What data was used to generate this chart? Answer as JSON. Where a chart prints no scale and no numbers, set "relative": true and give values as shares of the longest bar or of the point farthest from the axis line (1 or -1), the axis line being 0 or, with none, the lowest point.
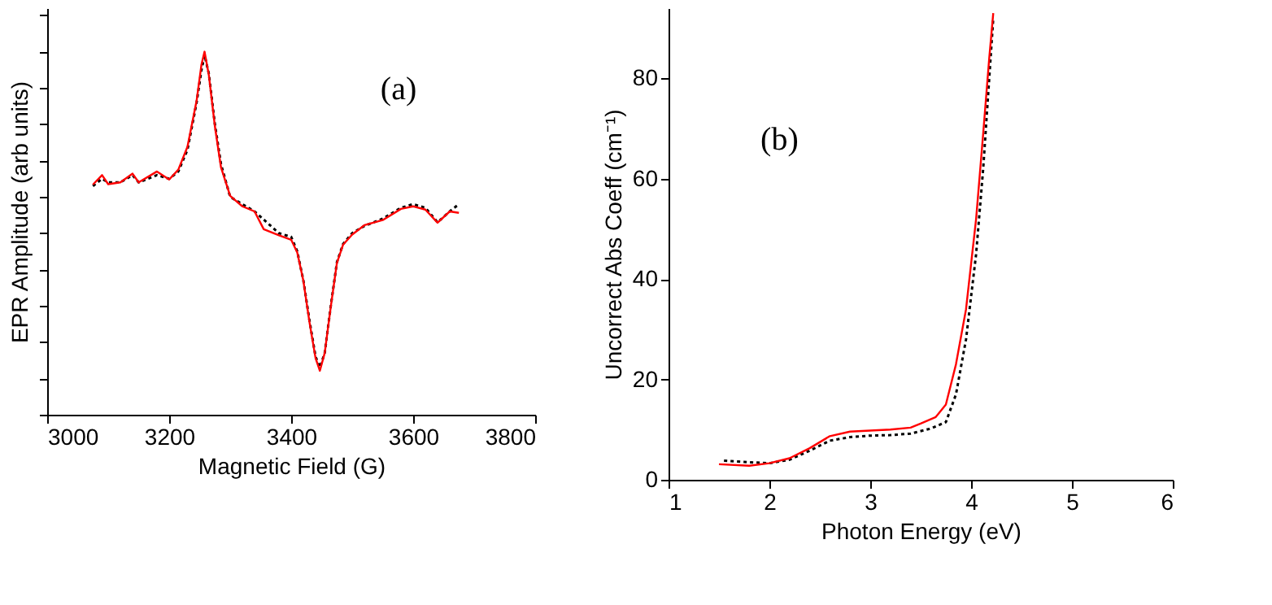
{
  "chart_data": [
    {
      "type": "line",
      "relative": true,
      "xlabel": "Magnetic Field (G)",
      "ylabel": "EPR Amplitude (arb units)",
      "annotations": [
        "(a)"
      ],
      "xlim": [
        3000,
        3800
      ],
      "xticks": [
        3000,
        3200,
        3400,
        3600,
        3800
      ],
      "tick_labels": "x",
      "grid": false,
      "legend": false,
      "series": [
        {
          "color": "#000000",
          "line_style": "dotted",
          "x": [
            3075,
            3090,
            3100,
            3120,
            3140,
            3150,
            3180,
            3200,
            3215,
            3230,
            3245,
            3253,
            3258,
            3265,
            3275,
            3285,
            3300,
            3320,
            3340,
            3360,
            3380,
            3400,
            3410,
            3420,
            3430,
            3440,
            3447,
            3455,
            3465,
            3475,
            3485,
            3500,
            3520,
            3550,
            3580,
            3600,
            3620,
            3640,
            3660,
            3675
          ],
          "values": [
            0.63,
            0.65,
            0.64,
            0.64,
            0.66,
            0.64,
            0.66,
            0.65,
            0.67,
            0.73,
            0.86,
            0.95,
            0.99,
            0.94,
            0.8,
            0.69,
            0.6,
            0.58,
            0.56,
            0.53,
            0.5,
            0.49,
            0.45,
            0.37,
            0.26,
            0.16,
            0.13,
            0.17,
            0.3,
            0.42,
            0.47,
            0.5,
            0.52,
            0.54,
            0.57,
            0.58,
            0.57,
            0.53,
            0.56,
            0.58
          ]
        },
        {
          "color": "#ff0000",
          "line_style": "solid",
          "x": [
            3075,
            3090,
            3100,
            3120,
            3140,
            3150,
            3180,
            3200,
            3215,
            3230,
            3245,
            3253,
            3258,
            3265,
            3275,
            3285,
            3300,
            3320,
            3340,
            3355,
            3380,
            3400,
            3410,
            3420,
            3430,
            3440,
            3447,
            3455,
            3465,
            3475,
            3485,
            3500,
            3520,
            3550,
            3580,
            3600,
            3620,
            3640,
            3660,
            3675
          ],
          "values": [
            0.634,
            0.66,
            0.635,
            0.64,
            0.664,
            0.64,
            0.67,
            0.648,
            0.675,
            0.738,
            0.865,
            0.965,
            1.0,
            0.936,
            0.794,
            0.681,
            0.603,
            0.574,
            0.56,
            0.511,
            0.494,
            0.482,
            0.447,
            0.369,
            0.255,
            0.156,
            0.121,
            0.17,
            0.298,
            0.418,
            0.468,
            0.496,
            0.522,
            0.536,
            0.567,
            0.574,
            0.565,
            0.529,
            0.56,
            0.556
          ]
        }
      ]
    },
    {
      "type": "line",
      "xlabel": "Photon Energy (eV)",
      "ylabel": "Uncorrect Abs Coeff (cm⁻¹)",
      "annotations": [
        "(b)"
      ],
      "xlim": [
        1,
        6
      ],
      "xticks": [
        1,
        2,
        3,
        4,
        5,
        6
      ],
      "ylim": [
        0,
        94
      ],
      "yticks": [
        0,
        20,
        40,
        60,
        80
      ],
      "grid": false,
      "legend": false,
      "series": [
        {
          "color": "#000000",
          "line_style": "dotted",
          "x": [
            1.55,
            1.8,
            2.0,
            2.2,
            2.4,
            2.6,
            2.8,
            3.0,
            3.2,
            3.4,
            3.6,
            3.75,
            3.85,
            3.95,
            4.05,
            4.12,
            4.18,
            4.22
          ],
          "values": [
            3.8,
            3.5,
            3.3,
            4,
            5.8,
            7.8,
            8.5,
            8.8,
            8.9,
            9.2,
            10.2,
            11.5,
            17,
            28,
            45,
            62,
            80,
            92
          ]
        },
        {
          "color": "#ff0000",
          "line_style": "solid",
          "x": [
            1.5,
            1.8,
            2.0,
            2.2,
            2.4,
            2.6,
            2.8,
            3.0,
            3.2,
            3.4,
            3.5,
            3.65,
            3.75,
            3.85,
            3.95,
            4.05,
            4.12,
            4.18,
            4.22
          ],
          "values": [
            3.1,
            2.8,
            3.3,
            4.3,
            6.3,
            8.7,
            9.6,
            9.8,
            10,
            10.4,
            11.2,
            12.5,
            15,
            23,
            34,
            52,
            69,
            84,
            93
          ]
        }
      ]
    }
  ]
}
